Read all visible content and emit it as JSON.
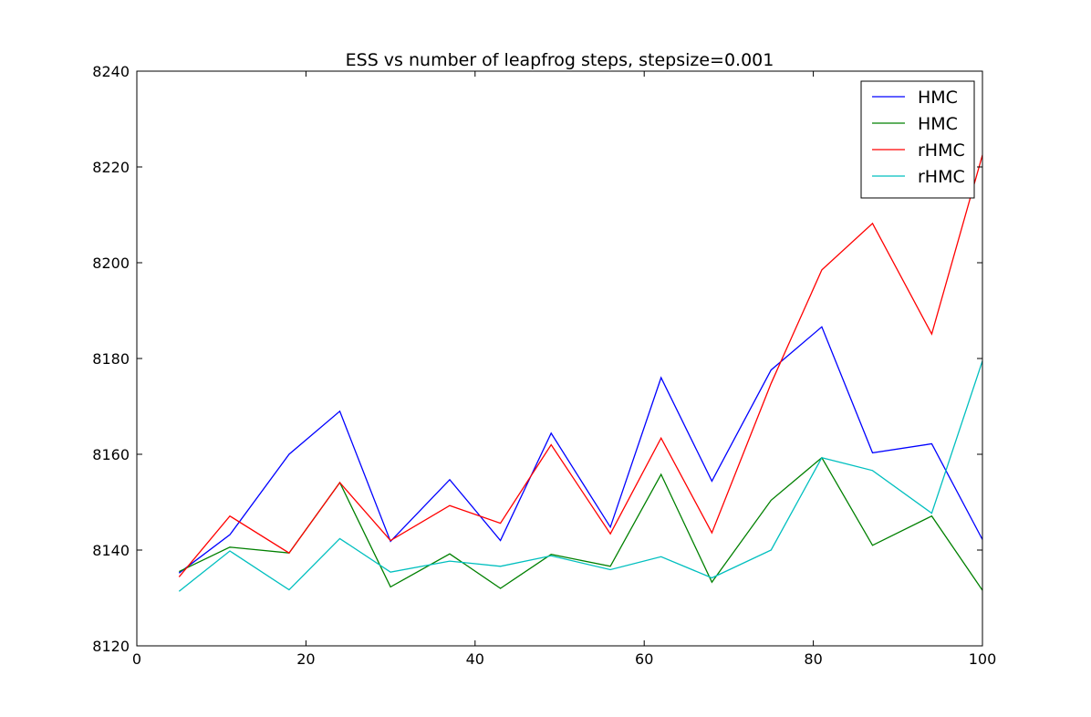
{
  "chart_data": {
    "type": "line",
    "title": "ESS vs number of leapfrog steps, stepsize=0.001",
    "xlabel": "",
    "ylabel": "",
    "xlim": [
      0,
      100
    ],
    "ylim": [
      8120,
      8240
    ],
    "xticks": [
      "0",
      "20",
      "40",
      "60",
      "80",
      "100"
    ],
    "yticks": [
      "8120",
      "8140",
      "8160",
      "8180",
      "8200",
      "8220",
      "8240"
    ],
    "grid": false,
    "legend_position": "top-right",
    "x": [
      5,
      11,
      18,
      24,
      30,
      37,
      43,
      49,
      56,
      62,
      68,
      75,
      81,
      87,
      94,
      100
    ],
    "series": [
      {
        "name": "HMC",
        "color": "#0000ff",
        "values": [
          8135.2,
          8143.2,
          8160.0,
          8169.0,
          8141.8,
          8154.7,
          8142.0,
          8164.4,
          8144.8,
          8176.0,
          8154.4,
          8177.6,
          8186.6,
          8160.3,
          8162.2,
          8142.2
        ]
      },
      {
        "name": "HMC",
        "color": "#008000",
        "values": [
          8135.5,
          8140.6,
          8139.4,
          8154.1,
          8132.3,
          8139.2,
          8132.0,
          8139.1,
          8136.6,
          8155.8,
          8133.3,
          8150.4,
          8159.3,
          8141.0,
          8147.1,
          8131.6
        ]
      },
      {
        "name": "rHMC",
        "color": "#ff0000",
        "values": [
          8134.4,
          8147.1,
          8139.4,
          8154.1,
          8142.0,
          8149.3,
          8145.6,
          8162.0,
          8143.4,
          8163.4,
          8143.6,
          8174.8,
          8198.5,
          8208.2,
          8185.1,
          8222.5
        ]
      },
      {
        "name": "rHMC",
        "color": "#00bfbf",
        "values": [
          8131.4,
          8139.8,
          8131.7,
          8142.4,
          8135.4,
          8137.7,
          8136.6,
          8138.8,
          8135.9,
          8138.6,
          8134.2,
          8140.0,
          8159.3,
          8156.6,
          8147.7,
          8179.5
        ]
      }
    ]
  }
}
